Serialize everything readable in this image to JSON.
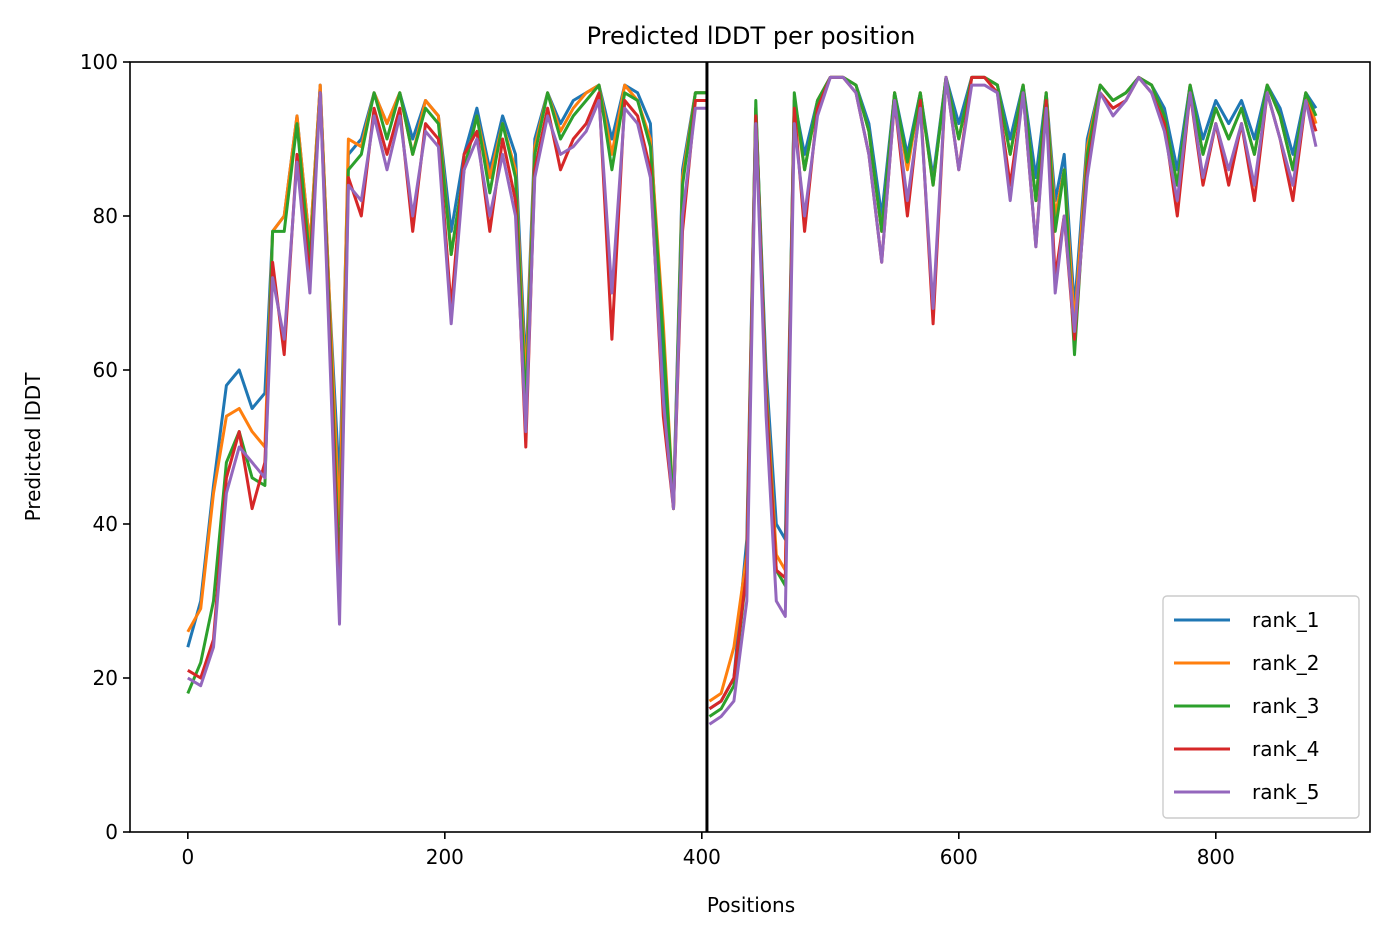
{
  "chart_data": {
    "type": "line",
    "title": "Predicted lDDT per position",
    "xlabel": "Positions",
    "ylabel": "Predicted lDDT",
    "xlim": [
      -45,
      920
    ],
    "ylim": [
      0,
      100
    ],
    "xticks": [
      0,
      200,
      400,
      600,
      800
    ],
    "yticks": [
      0,
      20,
      40,
      60,
      80,
      100
    ],
    "grid": false,
    "legend_position": "lower-right",
    "vertical_line_at": 404,
    "vertical_line_color": "#000000",
    "series": [
      {
        "name": "rank_1",
        "color": "#1f77b4",
        "x": [
          0,
          10,
          20,
          30,
          40,
          50,
          60,
          66,
          75,
          85,
          95,
          103,
          110,
          118,
          125,
          135,
          145,
          155,
          165,
          175,
          185,
          195,
          205,
          215,
          225,
          235,
          245,
          255,
          263,
          270,
          280,
          290,
          300,
          310,
          320,
          330,
          340,
          350,
          360,
          370,
          378,
          385,
          395,
          404
        ],
        "y": [
          24,
          30,
          45,
          58,
          60,
          55,
          57,
          78,
          80,
          93,
          76,
          97,
          70,
          45,
          88,
          90,
          96,
          92,
          96,
          90,
          95,
          93,
          78,
          88,
          94,
          86,
          93,
          88,
          60,
          90,
          96,
          92,
          95,
          96,
          97,
          90,
          97,
          96,
          92,
          60,
          43,
          86,
          96,
          96
        ]
      },
      {
        "name": "rank_2",
        "color": "#ff7f0e",
        "x": [
          0,
          10,
          20,
          30,
          40,
          50,
          60,
          66,
          75,
          85,
          95,
          103,
          110,
          118,
          125,
          135,
          145,
          155,
          165,
          175,
          185,
          195,
          205,
          215,
          225,
          235,
          245,
          255,
          263,
          270,
          280,
          290,
          300,
          310,
          320,
          330,
          340,
          350,
          360,
          370,
          378,
          385,
          395,
          404
        ],
        "y": [
          26,
          29,
          44,
          54,
          55,
          52,
          50,
          78,
          80,
          93,
          76,
          97,
          70,
          40,
          90,
          89,
          96,
          92,
          96,
          88,
          95,
          93,
          75,
          86,
          93,
          85,
          92,
          86,
          58,
          89,
          96,
          91,
          94,
          96,
          97,
          88,
          97,
          95,
          90,
          66,
          42,
          85,
          96,
          96
        ]
      },
      {
        "name": "rank_3",
        "color": "#2ca02c",
        "x": [
          0,
          10,
          20,
          30,
          40,
          50,
          60,
          66,
          75,
          85,
          95,
          103,
          110,
          118,
          125,
          135,
          145,
          155,
          165,
          175,
          185,
          195,
          205,
          215,
          225,
          235,
          245,
          255,
          263,
          270,
          280,
          290,
          300,
          310,
          320,
          330,
          340,
          350,
          360,
          370,
          378,
          385,
          395,
          404
        ],
        "y": [
          18,
          22,
          30,
          48,
          52,
          46,
          45,
          78,
          78,
          92,
          74,
          96,
          68,
          33,
          86,
          88,
          96,
          90,
          96,
          88,
          94,
          92,
          75,
          86,
          93,
          83,
          92,
          85,
          55,
          88,
          96,
          90,
          93,
          95,
          97,
          86,
          96,
          95,
          89,
          64,
          42,
          84,
          96,
          96
        ]
      },
      {
        "name": "rank_4",
        "color": "#d62728",
        "x": [
          0,
          10,
          20,
          30,
          40,
          50,
          60,
          66,
          75,
          85,
          95,
          103,
          110,
          118,
          125,
          135,
          145,
          155,
          165,
          175,
          185,
          195,
          205,
          215,
          225,
          235,
          245,
          255,
          263,
          270,
          280,
          290,
          300,
          310,
          320,
          330,
          340,
          350,
          360,
          370,
          378,
          385,
          395,
          404
        ],
        "y": [
          21,
          20,
          25,
          46,
          52,
          42,
          48,
          74,
          62,
          88,
          72,
          96,
          66,
          30,
          85,
          80,
          94,
          88,
          94,
          78,
          92,
          90,
          68,
          88,
          91,
          78,
          90,
          82,
          50,
          86,
          94,
          86,
          90,
          92,
          96,
          64,
          95,
          93,
          86,
          54,
          42,
          78,
          95,
          95
        ]
      },
      {
        "name": "rank_5",
        "color": "#9467bd",
        "x": [
          0,
          10,
          20,
          30,
          40,
          50,
          60,
          66,
          75,
          85,
          95,
          103,
          110,
          118,
          125,
          135,
          145,
          155,
          165,
          175,
          185,
          195,
          205,
          215,
          225,
          235,
          245,
          255,
          263,
          270,
          280,
          290,
          300,
          310,
          320,
          330,
          340,
          350,
          360,
          370,
          378,
          385,
          395,
          404
        ],
        "y": [
          20,
          19,
          24,
          44,
          50,
          48,
          46,
          72,
          64,
          87,
          70,
          96,
          64,
          27,
          84,
          82,
          93,
          86,
          93,
          80,
          91,
          89,
          66,
          86,
          90,
          80,
          88,
          80,
          52,
          85,
          93,
          88,
          89,
          91,
          95,
          70,
          94,
          92,
          85,
          56,
          42,
          80,
          94,
          94
        ]
      },
      {
        "name": "rank_1",
        "color": "#1f77b4",
        "x": [
          406,
          415,
          425,
          435,
          442,
          450,
          458,
          465,
          472,
          480,
          490,
          500,
          510,
          520,
          530,
          540,
          550,
          560,
          570,
          580,
          590,
          600,
          610,
          620,
          630,
          640,
          650,
          660,
          668,
          675,
          682,
          690,
          700,
          710,
          720,
          730,
          740,
          750,
          760,
          770,
          780,
          790,
          800,
          810,
          820,
          830,
          840,
          850,
          860,
          870,
          878
        ],
        "y": [
          16,
          17,
          20,
          38,
          94,
          60,
          40,
          38,
          95,
          88,
          95,
          98,
          98,
          97,
          92,
          80,
          96,
          88,
          96,
          85,
          98,
          92,
          98,
          98,
          97,
          90,
          97,
          85,
          96,
          82,
          88,
          68,
          90,
          97,
          95,
          96,
          98,
          97,
          94,
          86,
          97,
          90,
          95,
          92,
          95,
          90,
          97,
          94,
          88,
          96,
          94
        ]
      },
      {
        "name": "rank_2",
        "color": "#ff7f0e",
        "x": [
          406,
          415,
          425,
          435,
          442,
          450,
          458,
          465,
          472,
          480,
          490,
          500,
          510,
          520,
          530,
          540,
          550,
          560,
          570,
          580,
          590,
          600,
          610,
          620,
          630,
          640,
          650,
          660,
          668,
          675,
          682,
          690,
          700,
          710,
          720,
          730,
          740,
          750,
          760,
          770,
          780,
          790,
          800,
          810,
          820,
          830,
          840,
          850,
          860,
          870,
          878
        ],
        "y": [
          17,
          18,
          24,
          36,
          94,
          58,
          36,
          34,
          95,
          86,
          95,
          98,
          98,
          97,
          91,
          78,
          96,
          86,
          96,
          84,
          98,
          90,
          98,
          98,
          97,
          88,
          97,
          82,
          96,
          80,
          86,
          66,
          89,
          97,
          95,
          96,
          98,
          97,
          93,
          84,
          97,
          88,
          94,
          90,
          94,
          88,
          97,
          93,
          86,
          96,
          92
        ]
      },
      {
        "name": "rank_3",
        "color": "#2ca02c",
        "x": [
          406,
          415,
          425,
          435,
          442,
          450,
          458,
          465,
          472,
          480,
          490,
          500,
          510,
          520,
          530,
          540,
          550,
          560,
          570,
          580,
          590,
          600,
          610,
          620,
          630,
          640,
          650,
          660,
          668,
          675,
          682,
          690,
          700,
          710,
          720,
          730,
          740,
          750,
          760,
          770,
          780,
          790,
          800,
          810,
          820,
          830,
          840,
          850,
          860,
          870,
          878
        ],
        "y": [
          15,
          16,
          19,
          34,
          95,
          57,
          34,
          32,
          96,
          86,
          95,
          98,
          98,
          97,
          91,
          78,
          96,
          87,
          96,
          84,
          98,
          90,
          98,
          98,
          97,
          88,
          97,
          82,
          96,
          78,
          86,
          62,
          88,
          97,
          95,
          96,
          98,
          97,
          93,
          84,
          97,
          88,
          94,
          90,
          94,
          88,
          97,
          93,
          86,
          96,
          93
        ]
      },
      {
        "name": "rank_4",
        "color": "#d62728",
        "x": [
          406,
          415,
          425,
          435,
          442,
          450,
          458,
          465,
          472,
          480,
          490,
          500,
          510,
          520,
          530,
          540,
          550,
          560,
          570,
          580,
          590,
          600,
          610,
          620,
          630,
          640,
          650,
          660,
          668,
          675,
          682,
          690,
          700,
          710,
          720,
          730,
          740,
          750,
          760,
          770,
          780,
          790,
          800,
          810,
          820,
          830,
          840,
          850,
          860,
          870,
          878
        ],
        "y": [
          16,
          17,
          20,
          34,
          93,
          56,
          34,
          33,
          94,
          78,
          94,
          98,
          98,
          96,
          88,
          74,
          95,
          80,
          95,
          66,
          98,
          86,
          98,
          98,
          96,
          84,
          96,
          76,
          95,
          72,
          80,
          64,
          86,
          96,
          94,
          95,
          98,
          96,
          92,
          80,
          96,
          84,
          92,
          84,
          92,
          82,
          96,
          90,
          82,
          95,
          91
        ]
      },
      {
        "name": "rank_5",
        "color": "#9467bd",
        "x": [
          406,
          415,
          425,
          435,
          442,
          450,
          458,
          465,
          472,
          480,
          490,
          500,
          510,
          520,
          530,
          540,
          550,
          560,
          570,
          580,
          590,
          600,
          610,
          620,
          630,
          640,
          650,
          660,
          668,
          675,
          682,
          690,
          700,
          710,
          720,
          730,
          740,
          750,
          760,
          770,
          780,
          790,
          800,
          810,
          820,
          830,
          840,
          850,
          860,
          870,
          878
        ],
        "y": [
          14,
          15,
          17,
          30,
          92,
          54,
          30,
          28,
          92,
          80,
          93,
          98,
          98,
          96,
          88,
          74,
          95,
          82,
          94,
          68,
          98,
          86,
          97,
          97,
          96,
          82,
          96,
          76,
          94,
          70,
          80,
          65,
          85,
          96,
          93,
          95,
          98,
          96,
          91,
          82,
          96,
          85,
          92,
          86,
          92,
          84,
          96,
          90,
          84,
          95,
          89
        ]
      }
    ]
  }
}
